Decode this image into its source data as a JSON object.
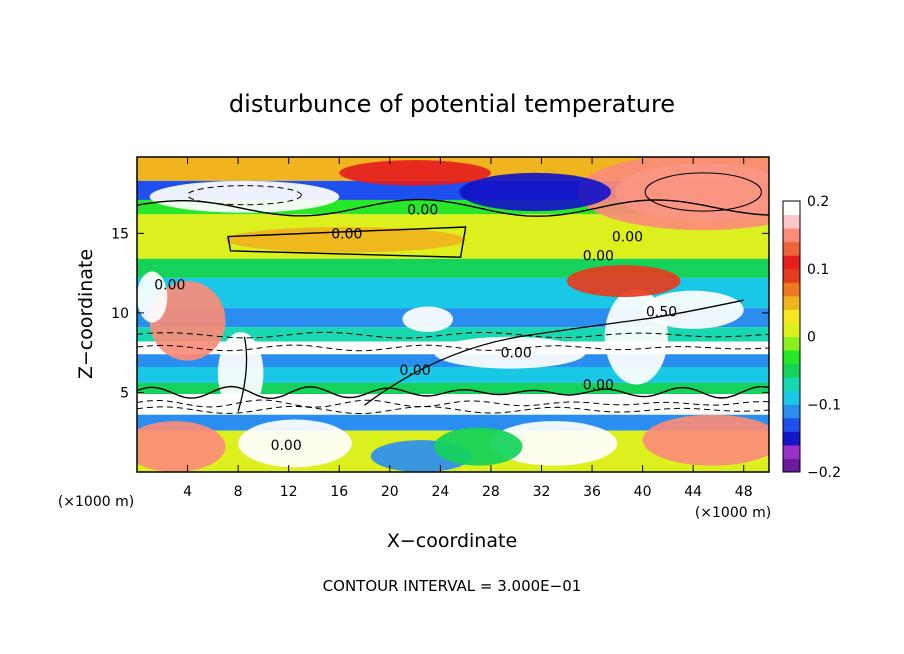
{
  "chart_data": {
    "type": "heatmap",
    "title": "disturbunce of potential temperature",
    "xlabel": "X−coordinate",
    "ylabel": "Z−coordinate",
    "x_unit_left": "(×1000 m)",
    "x_unit_right": "(×1000 m)",
    "footer": "CONTOUR INTERVAL = 3.000E−01",
    "xlim": [
      0,
      50
    ],
    "ylim": [
      0,
      19.8
    ],
    "x_ticks": [
      4,
      8,
      12,
      16,
      20,
      24,
      28,
      32,
      36,
      40,
      44,
      48
    ],
    "x_tick_labels": [
      "4",
      "8",
      "12",
      "16",
      "20",
      "24",
      "28",
      "32",
      "36",
      "40",
      "44",
      "48"
    ],
    "y_ticks": [
      5,
      10,
      15
    ],
    "y_tick_labels": [
      "5",
      "10",
      "15"
    ],
    "colorbar": {
      "range": [
        -0.2,
        0.2
      ],
      "ticks": [
        0.2,
        0.1,
        0,
        -0.1,
        -0.2
      ],
      "tick_labels": [
        "0.2",
        "0.1",
        "0",
        "−0.1",
        "−0.2"
      ],
      "colors": [
        "#6a1a9a",
        "#9b30c8",
        "#1414c8",
        "#1e50f0",
        "#2a8ef0",
        "#19c8e6",
        "#19d8b0",
        "#14d25a",
        "#28e628",
        "#8cf01e",
        "#dcf01e",
        "#f5e61e",
        "#f0b41e",
        "#f0781e",
        "#e63c1e",
        "#e61e1e",
        "#f0643c",
        "#fa8c78",
        "#ffc8c8",
        "#ffffff"
      ]
    },
    "bands": [
      {
        "z": [
          18.3,
          19.8
        ],
        "value": 0.05
      },
      {
        "z": [
          17.1,
          18.3
        ],
        "value": -0.13
      },
      {
        "z": [
          16.2,
          17.1
        ],
        "value": -0.03
      },
      {
        "z": [
          14.8,
          16.2
        ],
        "value": 0.0
      },
      {
        "z": [
          13.4,
          14.8
        ],
        "value": 0.01
      },
      {
        "z": [
          12.2,
          13.4
        ],
        "value": -0.04
      },
      {
        "z": [
          10.3,
          12.2
        ],
        "value": -0.1
      },
      {
        "z": [
          9.1,
          10.3
        ],
        "value": -0.12
      },
      {
        "z": [
          8.2,
          9.1
        ],
        "value": -0.07
      },
      {
        "z": [
          7.4,
          8.2
        ],
        "value": 0.2
      },
      {
        "z": [
          6.6,
          7.4
        ],
        "value": -0.12
      },
      {
        "z": [
          5.6,
          6.6
        ],
        "value": -0.09
      },
      {
        "z": [
          4.9,
          5.6
        ],
        "value": -0.05
      },
      {
        "z": [
          4.6,
          4.9
        ],
        "value": 0.2
      },
      {
        "z": [
          3.6,
          4.6
        ],
        "value": 0.2
      },
      {
        "z": [
          2.6,
          3.6
        ],
        "value": -0.12
      },
      {
        "z": [
          0.0,
          2.6
        ],
        "value": 0.02
      }
    ],
    "blobs": [
      {
        "x": 44.8,
        "z": 17.6,
        "rx": 7.0,
        "rz": 1.8,
        "value": 0.2
      },
      {
        "x": 44.8,
        "z": 17.6,
        "rx": 10.0,
        "rz": 2.4,
        "value": 0.15
      },
      {
        "x": 8.5,
        "z": 17.3,
        "rx": 7.5,
        "rz": 1.0,
        "value": 0.2
      },
      {
        "x": 31.5,
        "z": 17.6,
        "rx": 6.0,
        "rz": 1.2,
        "value": -0.15
      },
      {
        "x": 22.0,
        "z": 18.8,
        "rx": 6.0,
        "rz": 0.8,
        "value": 0.12
      },
      {
        "x": 16.5,
        "z": 14.6,
        "rx": 9.5,
        "rz": 0.8,
        "value": 0.04
      },
      {
        "x": 3.0,
        "z": 1.6,
        "rx": 4.0,
        "rz": 1.6,
        "value": 0.15
      },
      {
        "x": 12.5,
        "z": 1.8,
        "rx": 4.5,
        "rz": 1.5,
        "value": 0.2
      },
      {
        "x": 22.5,
        "z": 1.0,
        "rx": 4.0,
        "rz": 1.0,
        "value": -0.12
      },
      {
        "x": 33.0,
        "z": 1.8,
        "rx": 5.0,
        "rz": 1.4,
        "value": 0.2
      },
      {
        "x": 45.5,
        "z": 2.0,
        "rx": 5.5,
        "rz": 1.6,
        "value": 0.15
      },
      {
        "x": 27.0,
        "z": 1.6,
        "rx": 3.5,
        "rz": 1.2,
        "value": -0.06
      },
      {
        "x": 8.2,
        "z": 6.2,
        "rx": 1.8,
        "rz": 2.6,
        "value": 0.2
      },
      {
        "x": 4.0,
        "z": 9.5,
        "rx": 3.0,
        "rz": 2.5,
        "value": 0.15
      },
      {
        "x": 39.5,
        "z": 8.5,
        "rx": 2.5,
        "rz": 3.0,
        "value": 0.2
      },
      {
        "x": 44.0,
        "z": 10.2,
        "rx": 4.0,
        "rz": 1.2,
        "value": 0.2
      },
      {
        "x": 38.5,
        "z": 12.0,
        "rx": 4.5,
        "rz": 1.0,
        "value": 0.08
      },
      {
        "x": 23.0,
        "z": 9.6,
        "rx": 2.0,
        "rz": 0.8,
        "value": 0.2
      },
      {
        "x": 29.5,
        "z": 7.5,
        "rx": 6.0,
        "rz": 1.0,
        "value": 0.2
      },
      {
        "x": 1.2,
        "z": 11.0,
        "rx": 1.2,
        "rz": 1.6,
        "value": 0.2
      }
    ],
    "contour_labels": [
      {
        "x": 22.6,
        "z": 16.5,
        "text": "0.00"
      },
      {
        "x": 16.6,
        "z": 15.0,
        "text": "0.00"
      },
      {
        "x": 38.8,
        "z": 14.8,
        "text": "0.00"
      },
      {
        "x": 36.5,
        "z": 13.6,
        "text": "0.00"
      },
      {
        "x": 11.8,
        "z": 1.7,
        "text": "0.00"
      },
      {
        "x": 2.6,
        "z": 11.8,
        "text": "0.00"
      },
      {
        "x": 30.0,
        "z": 7.5,
        "text": "0.00"
      },
      {
        "x": 22.0,
        "z": 6.4,
        "text": "0.00"
      },
      {
        "x": 36.5,
        "z": 5.5,
        "text": "0.00"
      },
      {
        "x": 41.5,
        "z": 10.1,
        "text": "0.50"
      }
    ]
  }
}
